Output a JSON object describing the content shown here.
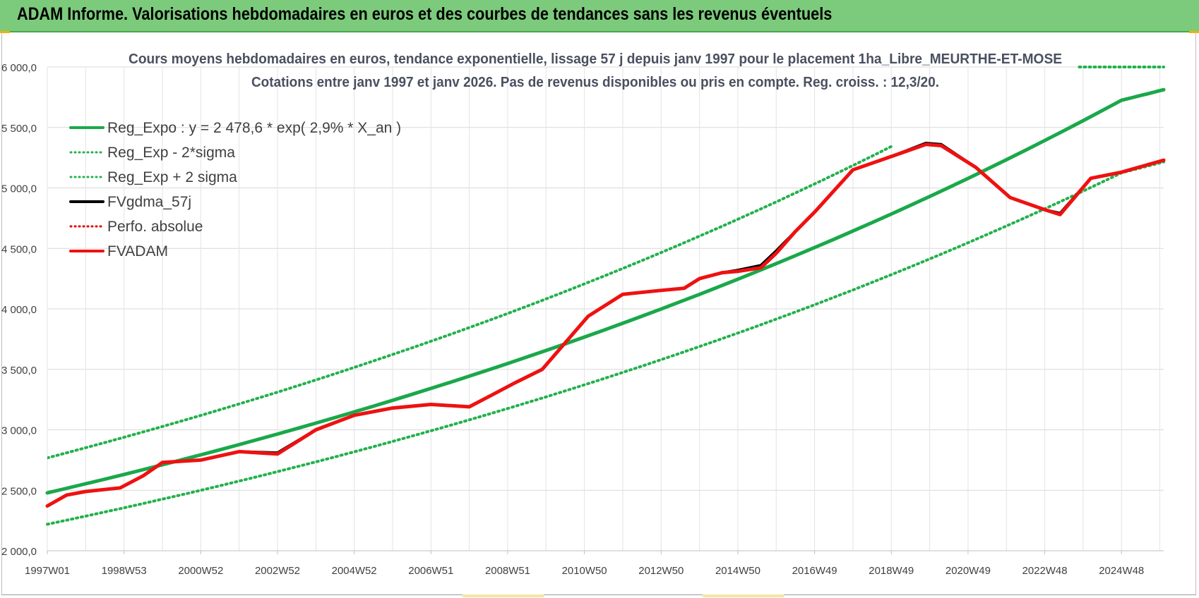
{
  "page": {
    "banner_title": "ADAM Informe. Valorisations hebdomadaires en euros et des courbes de tendances sans les revenus éventuels"
  },
  "colors": {
    "banner": "#7ccb7c",
    "regression": "#1aa84a",
    "bands": "#22b14c",
    "fvgdma": "#000000",
    "perfo": "#e00000",
    "fvadam": "#ee1111"
  },
  "chart_data": {
    "type": "line",
    "title": "Cours moyens hebdomadaires en euros, tendance exponentielle, lissage 57 j depuis janv 1997 pour le placement 1ha_Libre_MEURTHE-ET-MOSE",
    "subtitle": "Cotations entre janv 1997 et janv 2026. Pas de revenus disponibles ou pris en compte. Reg. croiss. : 12,3/20.",
    "xlabel": "",
    "ylabel": "",
    "ylim": [
      2000,
      6000
    ],
    "yticks": [
      2000,
      2500,
      3000,
      3500,
      4000,
      4500,
      5000,
      5500,
      6000
    ],
    "ytick_labels": [
      "2 000,0",
      "2 500,0",
      "3 000,0",
      "3 500,0",
      "4 000,0",
      "4 500,0",
      "5 000,0",
      "5 500,0",
      "6 000,0"
    ],
    "x_range_years": [
      1997.0,
      2026.1
    ],
    "xtick_labels": [
      "1997W01",
      "1998W53",
      "2000W52",
      "2002W52",
      "2004W52",
      "2006W51",
      "2008W51",
      "2010W50",
      "2012W50",
      "2014W50",
      "2016W49",
      "2018W49",
      "2020W49",
      "2022W48",
      "2024W48"
    ],
    "xtick_years": [
      1997.0,
      1999.0,
      2001.0,
      2003.0,
      2005.0,
      2007.0,
      2009.0,
      2011.0,
      2013.0,
      2015.0,
      2017.0,
      2019.0,
      2021.0,
      2023.0,
      2025.0
    ],
    "grid": true,
    "legend_position": "top-left",
    "legend": [
      {
        "label": "Reg_Expo : y = 2 478,6 * exp( 2,9% *  X_an )",
        "style": "solid",
        "color": "#1aa84a"
      },
      {
        "label": "Reg_Exp - 2*sigma",
        "style": "dotted",
        "color": "#22b14c"
      },
      {
        "label": "Reg_Exp + 2 sigma",
        "style": "dotted",
        "color": "#22b14c"
      },
      {
        "label": "FVgdma_57j",
        "style": "solid",
        "color": "#000000"
      },
      {
        "label": "Perfo. absolue",
        "style": "dotted",
        "color": "#e00000"
      },
      {
        "label": "FVADAM",
        "style": "solid",
        "color": "#ee1111"
      }
    ],
    "series": [
      {
        "name": "Reg_Expo : y = 2 478,6 * exp( 2,9% *  X_an )",
        "x": [
          1997.0,
          2001.0,
          2005.0,
          2009.0,
          2013.0,
          2017.0,
          2021.0,
          2025.0,
          2026.1
        ],
        "y": [
          2478.6,
          2793,
          3148,
          3548,
          3999,
          4507,
          5079,
          5725,
          5812
        ]
      },
      {
        "name": "Reg_Exp - 2*sigma",
        "x": [
          1997.0,
          2001.0,
          2005.0,
          2009.0,
          2013.0,
          2017.0,
          2021.0,
          2025.0,
          2026.1
        ],
        "y": [
          2219,
          2500,
          2818,
          3176,
          3580,
          4034,
          4547,
          5125,
          5215
        ]
      },
      {
        "name": "Reg_Exp + 2 sigma",
        "x": [
          1997.0,
          2001.0,
          2005.0,
          2009.0,
          2013.0,
          2017.0,
          2019.0,
          2021.0,
          2023.0,
          2025.0,
          2026.1
        ],
        "y": [
          2768,
          3119,
          3516,
          3962,
          4466,
          5033,
          5343,
          5672,
          6000,
          6000,
          6000
        ]
      },
      {
        "name": "FVgdma_57j",
        "x": [
          1997.0,
          1997.5,
          1998.0,
          1998.9,
          1999.5,
          2000.0,
          2001.0,
          2002.0,
          2003.0,
          2004.0,
          2005.0,
          2006.0,
          2007.0,
          2008.0,
          2008.6,
          2009.2,
          2009.9,
          2010.5,
          2011.1,
          2012.0,
          2012.9,
          2013.6,
          2014.0,
          2014.6,
          2015.0,
          2015.6,
          2016.0,
          2016.5,
          2017.0,
          2018.0,
          2019.0,
          2019.9,
          2020.3,
          2021.2,
          2022.1,
          2023.0,
          2023.4,
          2024.2,
          2025.0,
          2026.1
        ],
        "y": [
          2370,
          2460,
          2490,
          2520,
          2620,
          2730,
          2750,
          2820,
          2810,
          3000,
          3120,
          3180,
          3210,
          3190,
          3290,
          3390,
          3500,
          3720,
          3940,
          4120,
          4150,
          4170,
          4250,
          4300,
          4320,
          4360,
          4480,
          4640,
          4800,
          5150,
          5260,
          5370,
          5360,
          5170,
          4920,
          4820,
          4790,
          5080,
          5130,
          5230
        ]
      },
      {
        "name": "FVADAM",
        "x": [
          1997.0,
          1997.5,
          1998.0,
          1998.9,
          1999.5,
          2000.0,
          2001.0,
          2002.0,
          2003.0,
          2004.0,
          2005.0,
          2006.0,
          2007.0,
          2008.0,
          2008.6,
          2009.2,
          2009.9,
          2010.5,
          2011.1,
          2012.0,
          2012.9,
          2013.6,
          2014.0,
          2014.6,
          2015.0,
          2015.6,
          2016.0,
          2016.5,
          2017.0,
          2018.0,
          2019.0,
          2019.9,
          2020.3,
          2021.2,
          2022.1,
          2023.0,
          2023.4,
          2024.2,
          2025.0,
          2026.1
        ],
        "y": [
          2370,
          2460,
          2490,
          2520,
          2620,
          2730,
          2750,
          2820,
          2800,
          3000,
          3120,
          3180,
          3210,
          3190,
          3290,
          3390,
          3500,
          3720,
          3940,
          4120,
          4150,
          4170,
          4250,
          4300,
          4310,
          4340,
          4460,
          4640,
          4800,
          5150,
          5260,
          5360,
          5350,
          5170,
          4920,
          4820,
          4780,
          5080,
          5130,
          5230
        ]
      }
    ]
  }
}
